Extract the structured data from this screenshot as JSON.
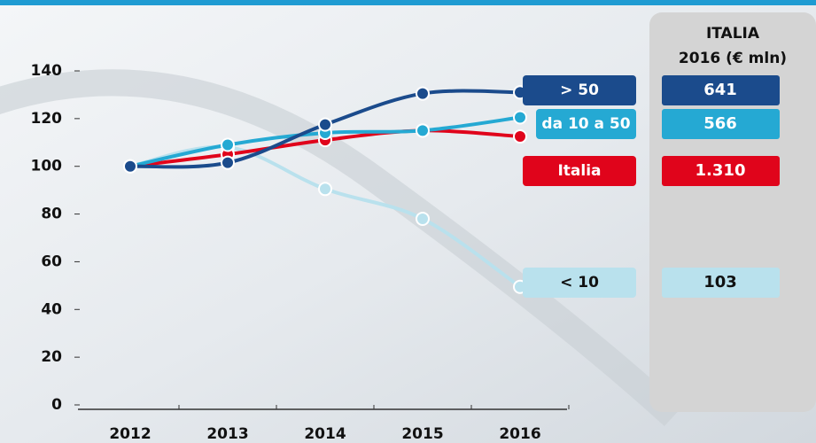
{
  "chart_data": {
    "type": "line",
    "x": [
      2012,
      2013,
      2014,
      2015,
      2016
    ],
    "xlim": [
      2012,
      2016
    ],
    "xticks": [
      2012,
      2013,
      2014,
      2015,
      2016
    ],
    "ylim": [
      0,
      140
    ],
    "yticks": [
      0,
      20,
      40,
      60,
      80,
      100,
      120,
      140
    ],
    "series": [
      {
        "name": "> 50",
        "color": "#1b4b8c",
        "values": [
          100,
          101.5,
          117.5,
          130.5,
          131
        ]
      },
      {
        "name": "da 10 a 50",
        "color": "#25a9d3",
        "values": [
          100,
          109,
          114,
          115,
          120.5
        ]
      },
      {
        "name": "Italia",
        "color": "#e0041b",
        "values": [
          100,
          105,
          111,
          115,
          112.5
        ]
      },
      {
        "name": "< 10",
        "color": "#b9e1ed",
        "values": [
          100,
          108,
          90.5,
          78,
          49.5
        ]
      }
    ],
    "side_panel": {
      "title": [
        "ITALIA",
        "2016 (€ mln)"
      ],
      "values": [
        641,
        566,
        1310,
        103
      ],
      "value_labels": [
        "641",
        "566",
        "1.310",
        "103"
      ]
    }
  }
}
